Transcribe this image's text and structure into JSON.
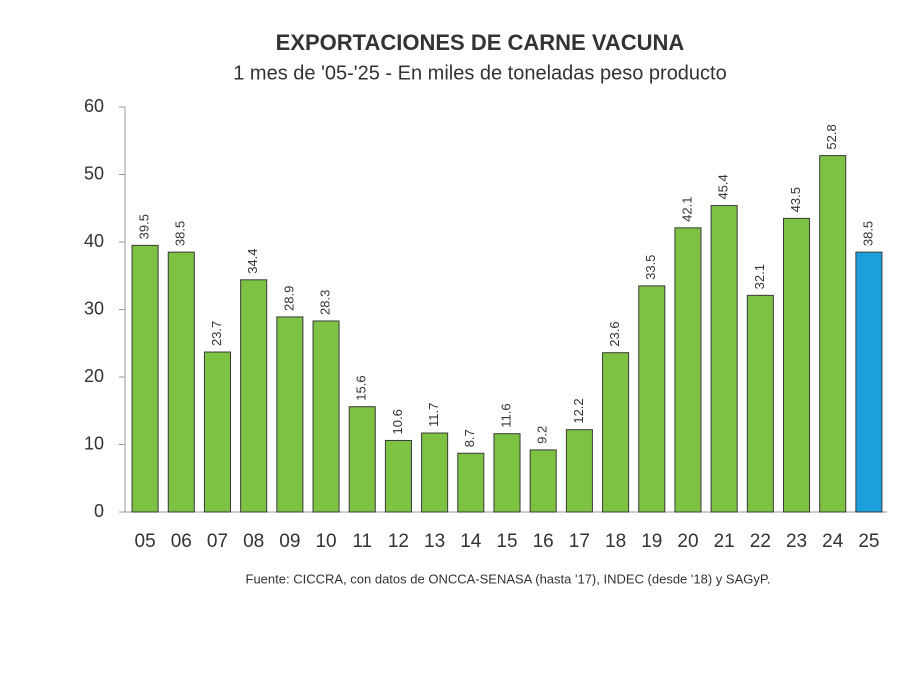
{
  "chart_data": {
    "type": "bar",
    "title": "EXPORTACIONES DE CARNE VACUNA",
    "subtitle": "1 mes de '05-'25 - En miles de toneladas peso producto",
    "source": "Fuente: CICCRA, con datos de ONCCA-SENASA (hasta '17), INDEC (desde '18) y SAGyP.",
    "categories": [
      "05",
      "06",
      "07",
      "08",
      "09",
      "10",
      "11",
      "12",
      "13",
      "14",
      "15",
      "16",
      "17",
      "18",
      "19",
      "20",
      "21",
      "22",
      "23",
      "24",
      "25"
    ],
    "values": [
      39.5,
      38.5,
      23.7,
      34.4,
      28.9,
      28.3,
      15.6,
      10.6,
      11.7,
      8.7,
      11.6,
      9.2,
      12.2,
      23.6,
      33.5,
      42.1,
      45.4,
      32.1,
      43.5,
      52.8,
      38.5
    ],
    "colors": [
      "#7dc242",
      "#7dc242",
      "#7dc242",
      "#7dc242",
      "#7dc242",
      "#7dc242",
      "#7dc242",
      "#7dc242",
      "#7dc242",
      "#7dc242",
      "#7dc242",
      "#7dc242",
      "#7dc242",
      "#7dc242",
      "#7dc242",
      "#7dc242",
      "#7dc242",
      "#7dc242",
      "#7dc242",
      "#7dc242",
      "#1ca0dc"
    ],
    "ylim": [
      0,
      60
    ],
    "yticks": [
      0,
      10,
      20,
      30,
      40,
      50,
      60
    ],
    "grid": false
  }
}
